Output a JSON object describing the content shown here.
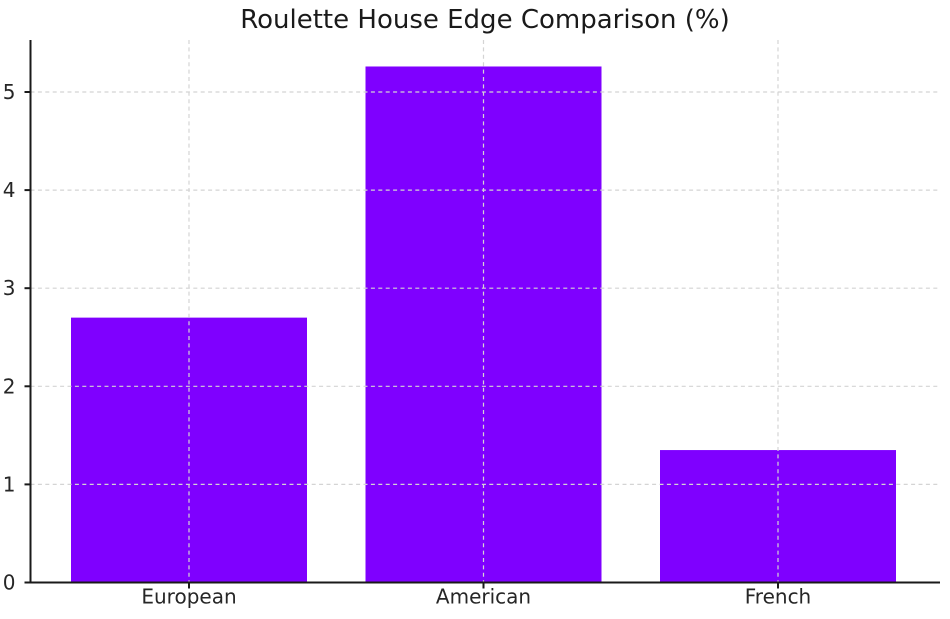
{
  "chart_data": {
    "type": "bar",
    "title": "Roulette House Edge Comparison (%)",
    "categories": [
      "European",
      "American",
      "French"
    ],
    "values": [
      2.7,
      5.26,
      1.35
    ],
    "xlabel": "",
    "ylabel": "",
    "ylim": [
      0,
      5.53
    ],
    "yticks": [
      0,
      1,
      2,
      3,
      4,
      5
    ],
    "grid": {
      "visible": true,
      "style": "dashed",
      "on_top_of_bars": true
    },
    "legend": {
      "visible": false
    },
    "colors": {
      "bar": "#7f00ff",
      "grid": "#d4d4d4",
      "axis": "#1a1a1a",
      "tick_label": "#262626",
      "title": "#1a1a1a",
      "background": "#ffffff"
    }
  }
}
